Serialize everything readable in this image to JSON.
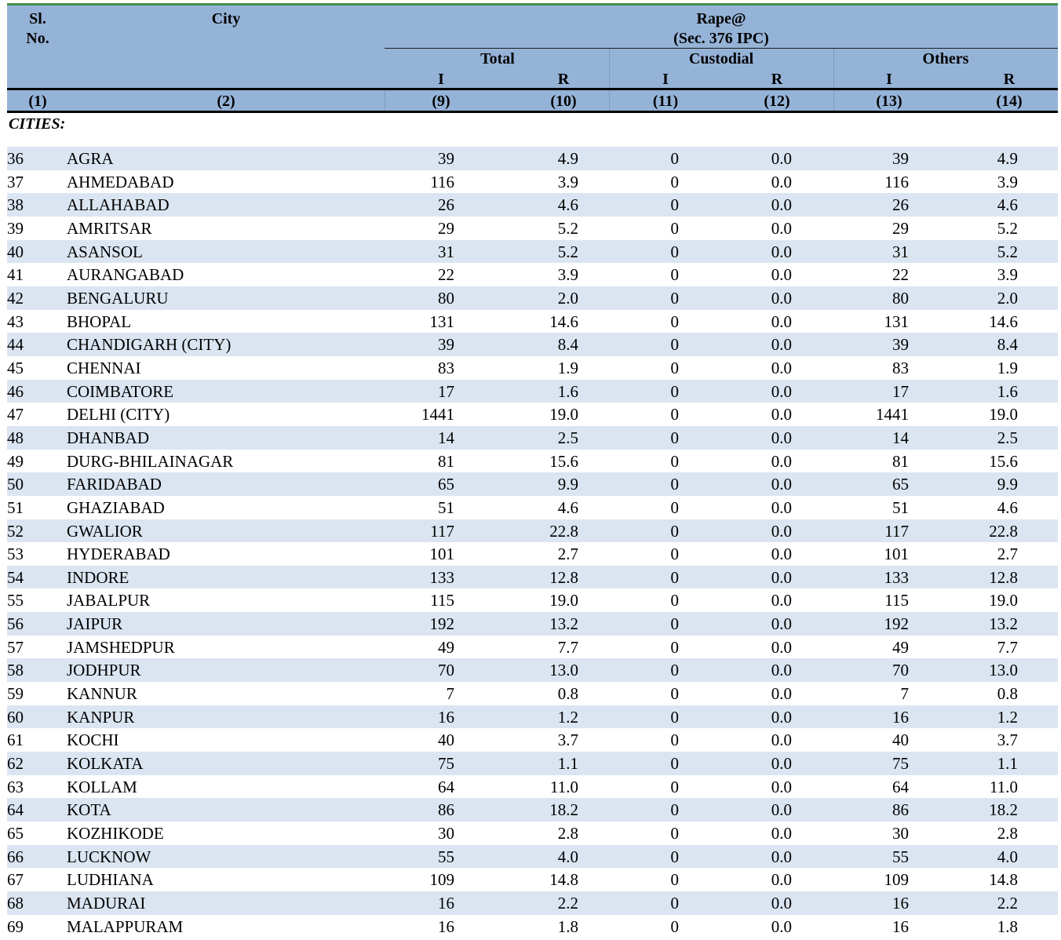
{
  "header": {
    "sl_no": "Sl.",
    "sl_no_2": "No.",
    "city": "City",
    "crime": "Rape@",
    "crime_section": "(Sec. 376 IPC)",
    "groups": [
      "Total",
      "Custodial",
      "Others"
    ],
    "sub": [
      "I",
      "R",
      "I",
      "R",
      "I",
      "R"
    ],
    "col_numbers": [
      "(1)",
      "(2)",
      "(9)",
      "(10)",
      "(11)",
      "(12)",
      "(13)",
      "(14)"
    ]
  },
  "section_label": "CITIES:",
  "rows": [
    {
      "sl": "36",
      "city": "AGRA",
      "ti": "39",
      "tr": "4.9",
      "ci": "0",
      "cr": "0.0",
      "oi": "39",
      "or": "4.9"
    },
    {
      "sl": "37",
      "city": "AHMEDABAD",
      "ti": "116",
      "tr": "3.9",
      "ci": "0",
      "cr": "0.0",
      "oi": "116",
      "or": "3.9"
    },
    {
      "sl": "38",
      "city": "ALLAHABAD",
      "ti": "26",
      "tr": "4.6",
      "ci": "0",
      "cr": "0.0",
      "oi": "26",
      "or": "4.6"
    },
    {
      "sl": "39",
      "city": "AMRITSAR",
      "ti": "29",
      "tr": "5.2",
      "ci": "0",
      "cr": "0.0",
      "oi": "29",
      "or": "5.2"
    },
    {
      "sl": "40",
      "city": "ASANSOL",
      "ti": "31",
      "tr": "5.2",
      "ci": "0",
      "cr": "0.0",
      "oi": "31",
      "or": "5.2"
    },
    {
      "sl": "41",
      "city": "AURANGABAD",
      "ti": "22",
      "tr": "3.9",
      "ci": "0",
      "cr": "0.0",
      "oi": "22",
      "or": "3.9"
    },
    {
      "sl": "42",
      "city": "BENGALURU",
      "ti": "80",
      "tr": "2.0",
      "ci": "0",
      "cr": "0.0",
      "oi": "80",
      "or": "2.0"
    },
    {
      "sl": "43",
      "city": "BHOPAL",
      "ti": "131",
      "tr": "14.6",
      "ci": "0",
      "cr": "0.0",
      "oi": "131",
      "or": "14.6"
    },
    {
      "sl": "44",
      "city": "CHANDIGARH (CITY)",
      "ti": "39",
      "tr": "8.4",
      "ci": "0",
      "cr": "0.0",
      "oi": "39",
      "or": "8.4"
    },
    {
      "sl": "45",
      "city": "CHENNAI",
      "ti": "83",
      "tr": "1.9",
      "ci": "0",
      "cr": "0.0",
      "oi": "83",
      "or": "1.9"
    },
    {
      "sl": "46",
      "city": "COIMBATORE",
      "ti": "17",
      "tr": "1.6",
      "ci": "0",
      "cr": "0.0",
      "oi": "17",
      "or": "1.6"
    },
    {
      "sl": "47",
      "city": "DELHI (CITY)",
      "ti": "1441",
      "tr": "19.0",
      "ci": "0",
      "cr": "0.0",
      "oi": "1441",
      "or": "19.0"
    },
    {
      "sl": "48",
      "city": "DHANBAD",
      "ti": "14",
      "tr": "2.5",
      "ci": "0",
      "cr": "0.0",
      "oi": "14",
      "or": "2.5"
    },
    {
      "sl": "49",
      "city": "DURG-BHILAINAGAR",
      "ti": "81",
      "tr": "15.6",
      "ci": "0",
      "cr": "0.0",
      "oi": "81",
      "or": "15.6"
    },
    {
      "sl": "50",
      "city": "FARIDABAD",
      "ti": "65",
      "tr": "9.9",
      "ci": "0",
      "cr": "0.0",
      "oi": "65",
      "or": "9.9"
    },
    {
      "sl": "51",
      "city": "GHAZIABAD",
      "ti": "51",
      "tr": "4.6",
      "ci": "0",
      "cr": "0.0",
      "oi": "51",
      "or": "4.6"
    },
    {
      "sl": "52",
      "city": "GWALIOR",
      "ti": "117",
      "tr": "22.8",
      "ci": "0",
      "cr": "0.0",
      "oi": "117",
      "or": "22.8"
    },
    {
      "sl": "53",
      "city": "HYDERABAD",
      "ti": "101",
      "tr": "2.7",
      "ci": "0",
      "cr": "0.0",
      "oi": "101",
      "or": "2.7"
    },
    {
      "sl": "54",
      "city": "INDORE",
      "ti": "133",
      "tr": "12.8",
      "ci": "0",
      "cr": "0.0",
      "oi": "133",
      "or": "12.8"
    },
    {
      "sl": "55",
      "city": "JABALPUR",
      "ti": "115",
      "tr": "19.0",
      "ci": "0",
      "cr": "0.0",
      "oi": "115",
      "or": "19.0"
    },
    {
      "sl": "56",
      "city": "JAIPUR",
      "ti": "192",
      "tr": "13.2",
      "ci": "0",
      "cr": "0.0",
      "oi": "192",
      "or": "13.2"
    },
    {
      "sl": "57",
      "city": "JAMSHEDPUR",
      "ti": "49",
      "tr": "7.7",
      "ci": "0",
      "cr": "0.0",
      "oi": "49",
      "or": "7.7"
    },
    {
      "sl": "58",
      "city": "JODHPUR",
      "ti": "70",
      "tr": "13.0",
      "ci": "0",
      "cr": "0.0",
      "oi": "70",
      "or": "13.0"
    },
    {
      "sl": "59",
      "city": "KANNUR",
      "ti": "7",
      "tr": "0.8",
      "ci": "0",
      "cr": "0.0",
      "oi": "7",
      "or": "0.8"
    },
    {
      "sl": "60",
      "city": "KANPUR",
      "ti": "16",
      "tr": "1.2",
      "ci": "0",
      "cr": "0.0",
      "oi": "16",
      "or": "1.2"
    },
    {
      "sl": "61",
      "city": "KOCHI",
      "ti": "40",
      "tr": "3.7",
      "ci": "0",
      "cr": "0.0",
      "oi": "40",
      "or": "3.7"
    },
    {
      "sl": "62",
      "city": "KOLKATA",
      "ti": "75",
      "tr": "1.1",
      "ci": "0",
      "cr": "0.0",
      "oi": "75",
      "or": "1.1"
    },
    {
      "sl": "63",
      "city": "KOLLAM",
      "ti": "64",
      "tr": "11.0",
      "ci": "0",
      "cr": "0.0",
      "oi": "64",
      "or": "11.0"
    },
    {
      "sl": "64",
      "city": "KOTA",
      "ti": "86",
      "tr": "18.2",
      "ci": "0",
      "cr": "0.0",
      "oi": "86",
      "or": "18.2"
    },
    {
      "sl": "65",
      "city": "KOZHIKODE",
      "ti": "30",
      "tr": "2.8",
      "ci": "0",
      "cr": "0.0",
      "oi": "30",
      "or": "2.8"
    },
    {
      "sl": "66",
      "city": "LUCKNOW",
      "ti": "55",
      "tr": "4.0",
      "ci": "0",
      "cr": "0.0",
      "oi": "55",
      "or": "4.0"
    },
    {
      "sl": "67",
      "city": "LUDHIANA",
      "ti": "109",
      "tr": "14.8",
      "ci": "0",
      "cr": "0.0",
      "oi": "109",
      "or": "14.8"
    },
    {
      "sl": "68",
      "city": "MADURAI",
      "ti": "16",
      "tr": "2.2",
      "ci": "0",
      "cr": "0.0",
      "oi": "16",
      "or": "2.2"
    },
    {
      "sl": "69",
      "city": "MALAPPURAM",
      "ti": "16",
      "tr": "1.8",
      "ci": "0",
      "cr": "0.0",
      "oi": "16",
      "or": "1.8"
    }
  ],
  "colors": {
    "header_bg": "#95b3d7",
    "alt_row_bg": "#dbe5f1",
    "top_rule": "#3f8f4a"
  }
}
